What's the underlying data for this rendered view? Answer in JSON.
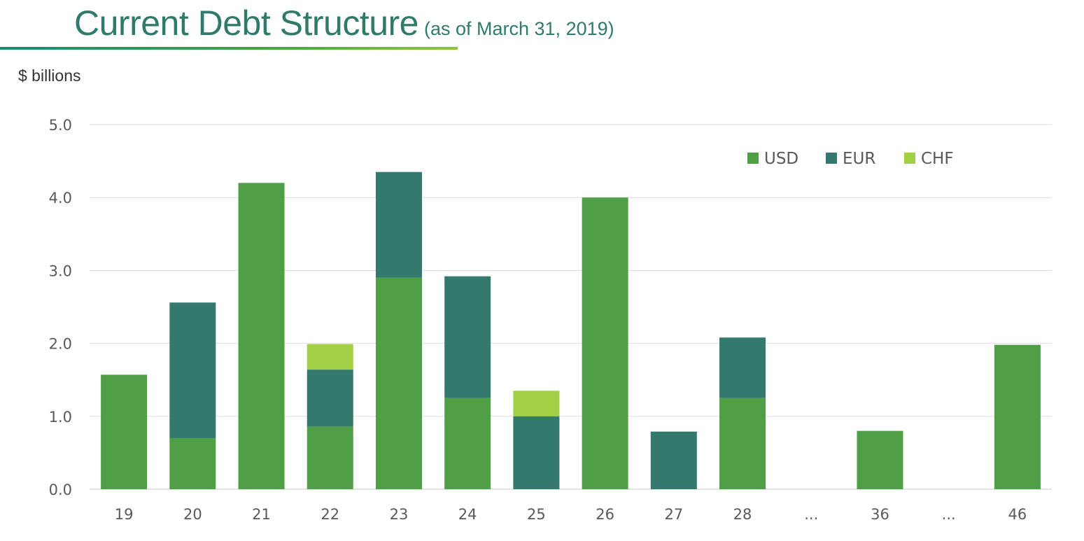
{
  "header": {
    "title": "Current Debt Structure",
    "subtitle": "(as of March 31, 2019)",
    "unit_label": "$ billions"
  },
  "colors": {
    "USD": "#4e9f45",
    "EUR": "#34796d",
    "CHF": "#a1cf45",
    "title": "#2f7a6a",
    "gridline": "#dddddd",
    "axis_text": "#595959"
  },
  "chart_data": {
    "type": "bar",
    "stacked": true,
    "categories": [
      "19",
      "20",
      "21",
      "22",
      "23",
      "24",
      "25",
      "26",
      "27",
      "28",
      "...",
      "36",
      "...",
      "46"
    ],
    "series": [
      {
        "name": "USD",
        "values": [
          1.57,
          0.7,
          4.2,
          0.86,
          2.9,
          1.25,
          0,
          4.0,
          0,
          1.25,
          0,
          0.8,
          0,
          1.98
        ]
      },
      {
        "name": "EUR",
        "values": [
          0,
          1.86,
          0,
          0.78,
          1.45,
          1.67,
          1.0,
          0,
          0.79,
          0.83,
          0,
          0,
          0,
          0
        ]
      },
      {
        "name": "CHF",
        "values": [
          0,
          0,
          0,
          0.35,
          0,
          0,
          0.35,
          0,
          0,
          0,
          0,
          0,
          0,
          0
        ]
      }
    ],
    "ylim": [
      0,
      5
    ],
    "yticks": [
      "0.0",
      "1.0",
      "2.0",
      "3.0",
      "4.0",
      "5.0"
    ],
    "ylabel": "$ billions",
    "xlabel": "",
    "grid": true,
    "legend_position": "top-right"
  }
}
